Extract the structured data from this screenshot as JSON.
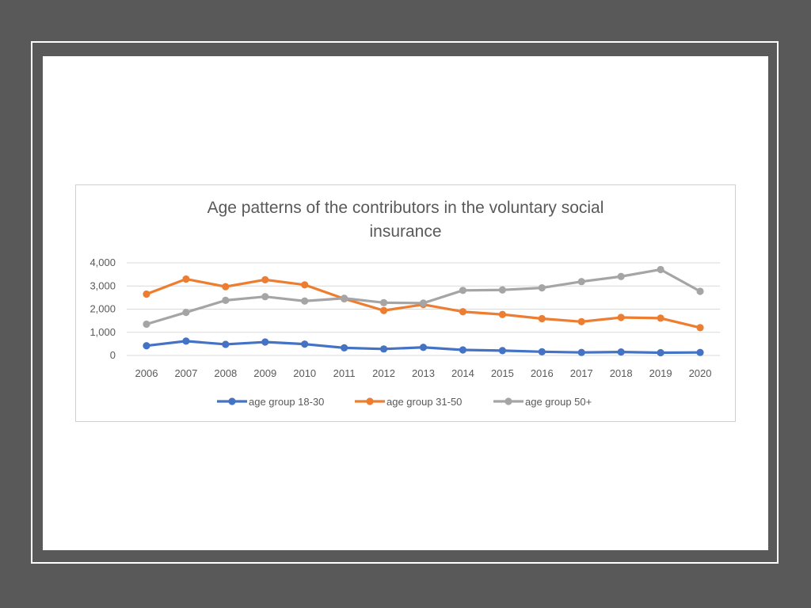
{
  "chart_data": {
    "type": "line",
    "title": "Age patterns of the contributors in the voluntary social insurance",
    "title_lines": [
      "Age patterns of the contributors in the voluntary social",
      "insurance"
    ],
    "categories": [
      "2006",
      "2007",
      "2008",
      "2009",
      "2010",
      "2011",
      "2012",
      "2013",
      "2014",
      "2015",
      "2016",
      "2017",
      "2018",
      "2019",
      "2020"
    ],
    "y_ticks": [
      0,
      1000,
      2000,
      3000,
      4000
    ],
    "y_tick_labels": [
      "0",
      "1,000",
      "2,000",
      "3,000",
      "4,000"
    ],
    "ylim": [
      0,
      4000
    ],
    "grid": true,
    "legend_position": "bottom",
    "series": [
      {
        "name": "age group 18-30",
        "color": "#4472c4",
        "values": [
          420,
          620,
          480,
          580,
          490,
          330,
          280,
          350,
          240,
          210,
          160,
          130,
          150,
          120,
          130
        ]
      },
      {
        "name": "age group 31-50",
        "color": "#ed7d31",
        "values": [
          2650,
          3300,
          2970,
          3270,
          3050,
          2450,
          1940,
          2200,
          1890,
          1770,
          1590,
          1460,
          1640,
          1610,
          1200
        ]
      },
      {
        "name": "age group 50+",
        "color": "#a5a5a5",
        "values": [
          1350,
          1860,
          2380,
          2540,
          2350,
          2470,
          2280,
          2260,
          2810,
          2830,
          2920,
          3190,
          3410,
          3710,
          2770
        ]
      }
    ]
  }
}
